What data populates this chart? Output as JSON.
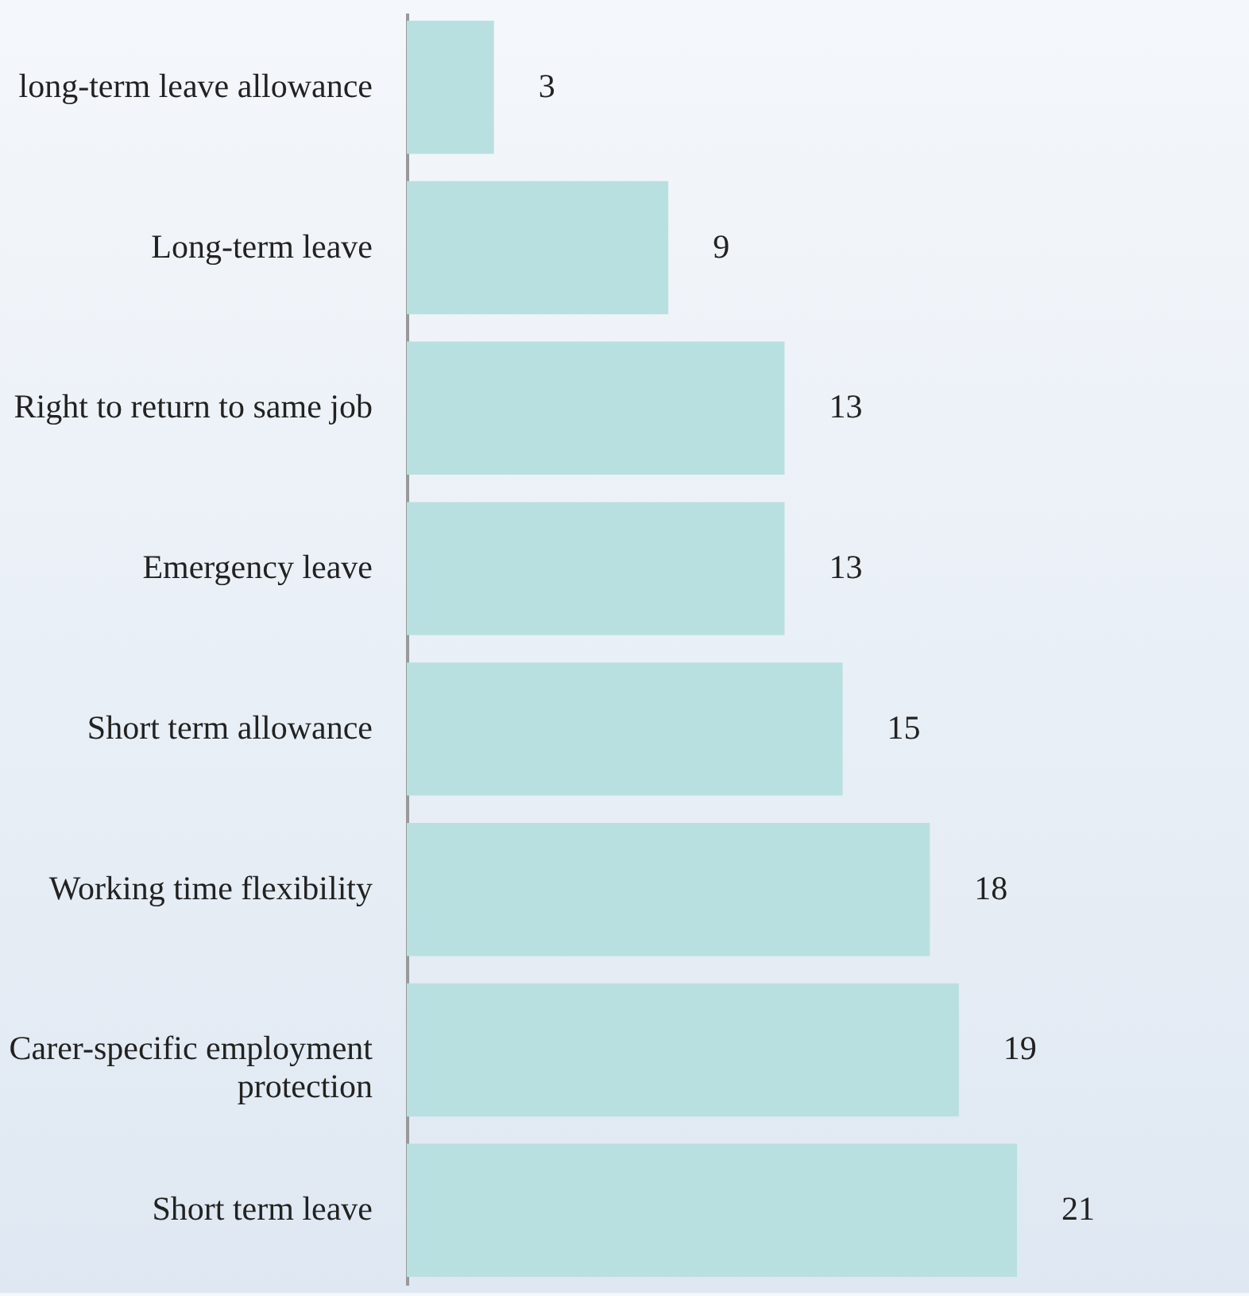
{
  "chart_data": {
    "type": "bar",
    "orientation": "horizontal",
    "categories": [
      "long-term leave allowance",
      "Long-term leave",
      "Right to return to same job",
      "Emergency leave",
      "Short term allowance",
      "Working time flexibility",
      "Carer-specific employment protection",
      "Short term leave"
    ],
    "values": [
      3,
      9,
      13,
      13,
      15,
      18,
      19,
      21
    ],
    "color": "#b9e0e0",
    "data_labels": true
  }
}
